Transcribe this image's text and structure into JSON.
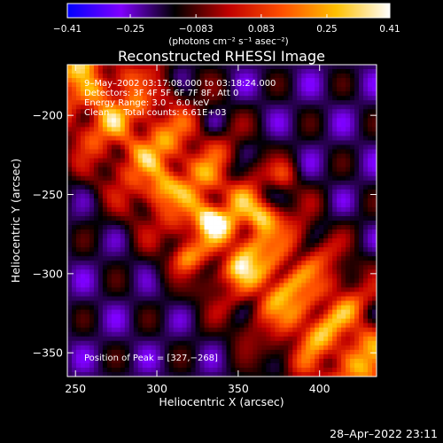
{
  "colorbar": {
    "ticks": [
      "-0.41",
      "-0.25",
      "-0.083",
      "0.083",
      "0.25",
      "0.41"
    ],
    "tick_values": [
      -0.41,
      -0.25,
      -0.083,
      0.083,
      0.25,
      0.41
    ],
    "range": [
      -0.41,
      0.41
    ],
    "units": "(photons cm⁻² s⁻¹ asec⁻²)",
    "colors": [
      "#0000ff",
      "#8000ff",
      "#000000",
      "#c00000",
      "#ff5000",
      "#ffc000",
      "#ffffff"
    ]
  },
  "chart_data": {
    "type": "heatmap",
    "title": "Reconstructed RHESSI Image",
    "xlabel": "Heliocentric X (arcsec)",
    "ylabel": "Heliocentric Y (arcsec)",
    "xlim": [
      245,
      435
    ],
    "ylim": [
      -365,
      -168
    ],
    "x_ticks": [
      250,
      300,
      350,
      400
    ],
    "y_ticks": [
      -200,
      -250,
      -300,
      -350
    ],
    "x_tick_labels": [
      "250",
      "300",
      "350",
      "400"
    ],
    "y_tick_labels": [
      "−200",
      "−250",
      "−300",
      "−350"
    ],
    "peak": [
      327,
      -268
    ],
    "info_lines": [
      "9–May–2002 03:17:08.000 to 03:18:24.000",
      "Detectors: 3F 4F 5F 6F 7F 8F, Att 0",
      "Energy Range: 3.0 – 6.0 keV",
      "Clean     Total counts: 6.61E+03"
    ],
    "peak_label": "Position of Peak = [327,−268]"
  },
  "footer": {
    "timestamp": "28–Apr–2022 23:11"
  }
}
